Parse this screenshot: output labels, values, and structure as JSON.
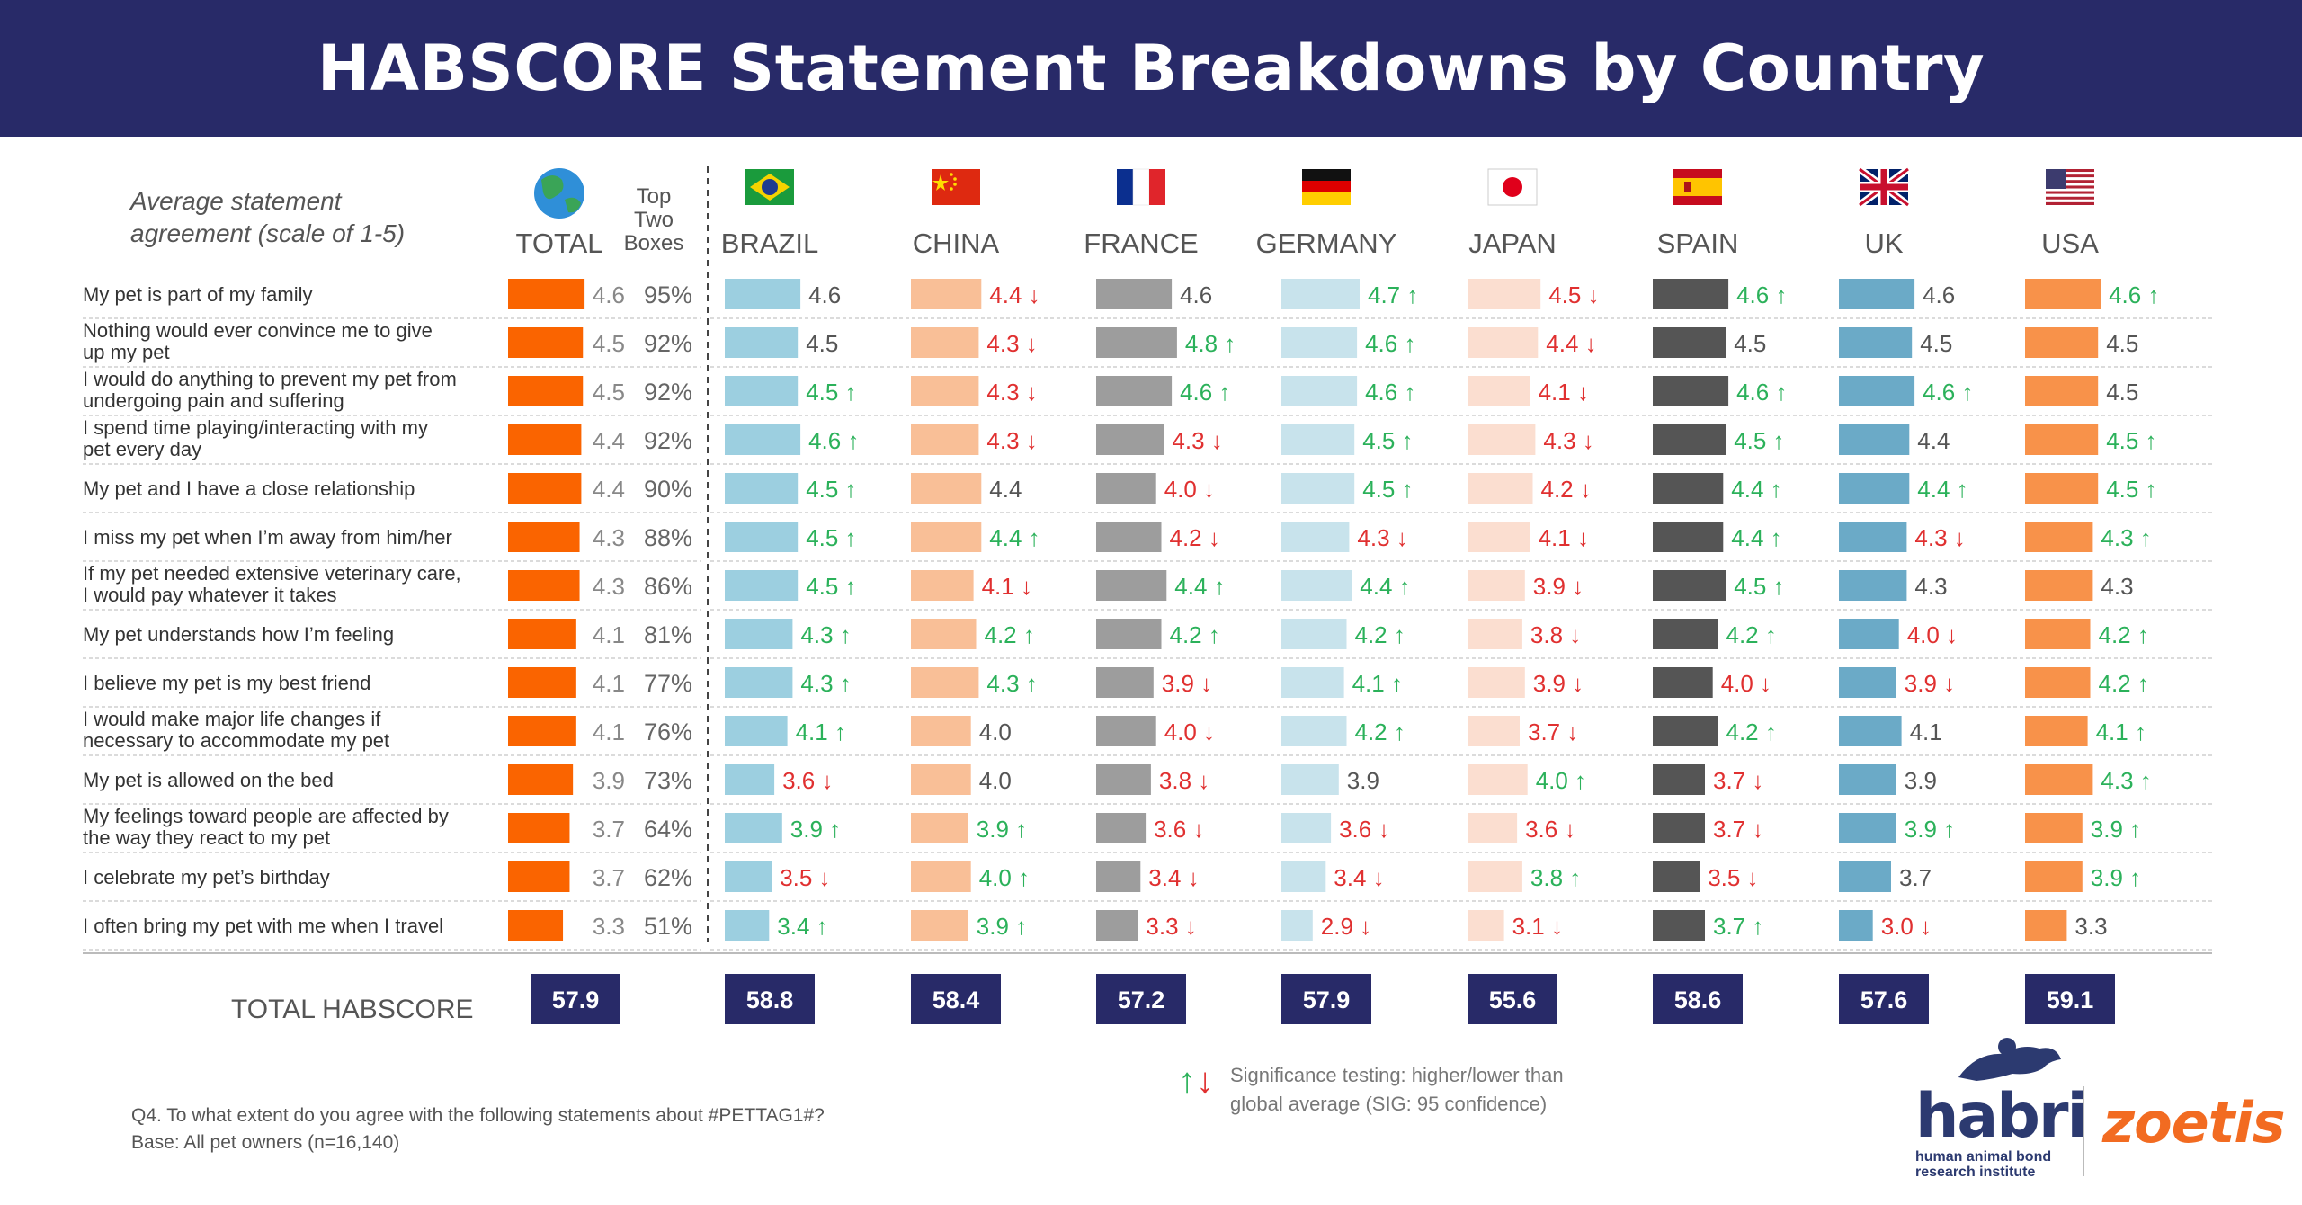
{
  "title": "HABSCORE Statement Breakdowns by Country",
  "colors": {
    "banner": "#282a68",
    "total_bar": "#fa6400",
    "up_arrow": "#2bb15a",
    "down_arrow": "#e03030",
    "score_box": "#282a68"
  },
  "chart_data": {
    "type": "bar",
    "subtitle": "Average statement agreement (scale of 1-5)",
    "top_two_label": "Top Two Boxes",
    "categories": [
      "My pet is part of my family",
      "Nothing would ever convince me to give up my pet",
      "I would do anything to prevent my pet from undergoing pain and suffering",
      "I spend time playing/interacting with my pet every day",
      "My pet and I have a close relationship",
      "I miss my pet when I’m away from him/her",
      "If my pet needed extensive veterinary care, I would pay whatever it takes",
      "My pet understands how I’m feeling",
      "I believe my pet is my best friend",
      "I would make major life changes if necessary to accommodate my pet",
      "My pet is allowed on the bed",
      "My feelings toward people are affected by the way they react to my pet",
      "I celebrate my pet’s birthday",
      "I often bring my pet with me when I travel"
    ],
    "category_lines": [
      [
        "My pet is part of my family"
      ],
      [
        "Nothing would ever convince me to give",
        "up my pet"
      ],
      [
        "I would do anything to prevent my pet from",
        "undergoing pain and suffering"
      ],
      [
        "I spend time playing/interacting with my",
        "pet every day"
      ],
      [
        "My pet and I have a close relationship"
      ],
      [
        "I miss my pet when I’m away from him/her"
      ],
      [
        "If my pet needed extensive veterinary care,",
        "I would pay whatever it takes"
      ],
      [
        "My pet understands how I’m feeling"
      ],
      [
        "I believe my pet is my best friend"
      ],
      [
        "I would make major life changes if",
        "necessary to accommodate my pet"
      ],
      [
        "My pet is allowed on the bed"
      ],
      [
        "My feelings toward people are affected by",
        "the way they react to my pet"
      ],
      [
        "I celebrate my pet’s birthday"
      ],
      [
        "I often bring my pet with me when I travel"
      ]
    ],
    "total": {
      "name": "TOTAL",
      "icon": "globe-icon",
      "values": [
        4.6,
        4.5,
        4.5,
        4.4,
        4.4,
        4.3,
        4.3,
        4.1,
        4.1,
        4.1,
        3.9,
        3.7,
        3.7,
        3.3
      ],
      "top_two_boxes": [
        "95%",
        "92%",
        "92%",
        "92%",
        "90%",
        "88%",
        "86%",
        "81%",
        "77%",
        "76%",
        "73%",
        "64%",
        "62%",
        "51%"
      ],
      "habscore": "57.9"
    },
    "series": [
      {
        "name": "BRAZIL",
        "icon": "brazil-flag-icon",
        "color": "#9ccfe0",
        "habscore": "58.8",
        "values": [
          4.6,
          4.5,
          4.5,
          4.6,
          4.5,
          4.5,
          4.5,
          4.3,
          4.3,
          4.1,
          3.6,
          3.9,
          3.5,
          3.4
        ],
        "sig": [
          "",
          "",
          "up",
          "up",
          "up",
          "up",
          "up",
          "up",
          "up",
          "up",
          "down",
          "up",
          "down",
          "up"
        ]
      },
      {
        "name": "CHINA",
        "icon": "china-flag-icon",
        "color": "#f9bf97",
        "habscore": "58.4",
        "values": [
          4.4,
          4.3,
          4.3,
          4.3,
          4.4,
          4.4,
          4.1,
          4.2,
          4.3,
          4.0,
          4.0,
          3.9,
          4.0,
          3.9
        ],
        "sig": [
          "down",
          "down",
          "down",
          "down",
          "",
          "up",
          "down",
          "up",
          "up",
          "",
          "",
          "up",
          "up",
          "up"
        ]
      },
      {
        "name": "FRANCE",
        "icon": "france-flag-icon",
        "color": "#9d9d9d",
        "habscore": "57.2",
        "values": [
          4.6,
          4.8,
          4.6,
          4.3,
          4.0,
          4.2,
          4.4,
          4.2,
          3.9,
          4.0,
          3.8,
          3.6,
          3.4,
          3.3
        ],
        "sig": [
          "",
          "up",
          "up",
          "down",
          "down",
          "down",
          "up",
          "up",
          "down",
          "down",
          "down",
          "down",
          "down",
          "down"
        ]
      },
      {
        "name": "GERMANY",
        "icon": "germany-flag-icon",
        "color": "#c8e3ec",
        "habscore": "57.9",
        "values": [
          4.7,
          4.6,
          4.6,
          4.5,
          4.5,
          4.3,
          4.4,
          4.2,
          4.1,
          4.2,
          3.9,
          3.6,
          3.4,
          2.9
        ],
        "sig": [
          "up",
          "up",
          "up",
          "up",
          "up",
          "down",
          "up",
          "up",
          "up",
          "up",
          "",
          "down",
          "down",
          "down"
        ]
      },
      {
        "name": "JAPAN",
        "icon": "japan-flag-icon",
        "color": "#fbded0",
        "habscore": "55.6",
        "values": [
          4.5,
          4.4,
          4.1,
          4.3,
          4.2,
          4.1,
          3.9,
          3.8,
          3.9,
          3.7,
          4.0,
          3.6,
          3.8,
          3.1
        ],
        "sig": [
          "down",
          "down",
          "down",
          "down",
          "down",
          "down",
          "down",
          "down",
          "down",
          "down",
          "up",
          "down",
          "up",
          "down"
        ]
      },
      {
        "name": "SPAIN",
        "icon": "spain-flag-icon",
        "color": "#555555",
        "habscore": "58.6",
        "values": [
          4.6,
          4.5,
          4.6,
          4.5,
          4.4,
          4.4,
          4.5,
          4.2,
          4.0,
          4.2,
          3.7,
          3.7,
          3.5,
          3.7
        ],
        "sig": [
          "up",
          "",
          "up",
          "up",
          "up",
          "up",
          "up",
          "up",
          "down",
          "up",
          "down",
          "down",
          "down",
          "up"
        ]
      },
      {
        "name": "UK",
        "icon": "uk-flag-icon",
        "color": "#6baac7",
        "habscore": "57.6",
        "values": [
          4.6,
          4.5,
          4.6,
          4.4,
          4.4,
          4.3,
          4.3,
          4.0,
          3.9,
          4.1,
          3.9,
          3.9,
          3.7,
          3.0
        ],
        "sig": [
          "",
          "",
          "up",
          "",
          "up",
          "down",
          "",
          "down",
          "down",
          "",
          "",
          "up",
          "",
          "down"
        ]
      },
      {
        "name": "USA",
        "icon": "usa-flag-icon",
        "color": "#f8924a",
        "habscore": "59.1",
        "values": [
          4.6,
          4.5,
          4.5,
          4.5,
          4.5,
          4.3,
          4.3,
          4.2,
          4.2,
          4.1,
          4.3,
          3.9,
          3.9,
          3.3
        ],
        "sig": [
          "up",
          "",
          "",
          "up",
          "up",
          "up",
          "",
          "up",
          "up",
          "up",
          "up",
          "up",
          "up",
          ""
        ]
      }
    ],
    "total_habscore_label": "TOTAL HABSCORE"
  },
  "legend": {
    "line1": "Significance testing: higher/lower than",
    "line2": "global average (SIG: 95 confidence)"
  },
  "footer": {
    "question": "Q4. To what extent do you agree with the following statements about #PETTAG1#?",
    "base": "Base: All pet owners (n=16,140)"
  },
  "logos": {
    "habri": "habri",
    "habri_sub_1": "human animal bond",
    "habri_sub_2": "research institute",
    "zoetis": "zoetis"
  }
}
